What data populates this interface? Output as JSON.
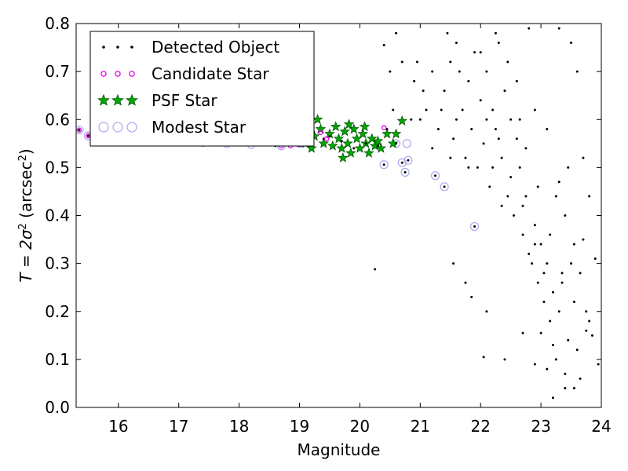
{
  "chart_data": {
    "type": "scatter",
    "xlabel": "Magnitude",
    "ylabel": {
      "prefix": "T = 2σ",
      "sup1": "2",
      "middle": " (arcsec",
      "sup2": "2",
      "suffix": ")"
    },
    "xlim": [
      15.3,
      24
    ],
    "ylim": [
      0.0,
      0.8
    ],
    "xticks": [
      16,
      17,
      18,
      19,
      20,
      21,
      22,
      23,
      24
    ],
    "yticks": [
      0.0,
      0.1,
      0.2,
      0.3,
      0.4,
      0.5,
      0.6,
      0.7,
      0.8
    ],
    "xtick_labels": [
      "16",
      "17",
      "18",
      "19",
      "20",
      "21",
      "22",
      "23",
      "24"
    ],
    "ytick_labels": [
      "0.0",
      "0.1",
      "0.2",
      "0.3",
      "0.4",
      "0.5",
      "0.6",
      "0.7",
      "0.8"
    ],
    "grid": false,
    "legend_position": "top-left",
    "series": [
      {
        "name": "Detected Object",
        "marker": "dot",
        "color": "#000000",
        "points": [
          [
            15.35,
            0.578
          ],
          [
            15.5,
            0.566
          ],
          [
            15.95,
            0.575
          ],
          [
            16.2,
            0.56
          ],
          [
            16.6,
            0.556
          ],
          [
            17.0,
            0.552
          ],
          [
            17.4,
            0.552
          ],
          [
            17.8,
            0.55
          ],
          [
            18.2,
            0.548
          ],
          [
            18.6,
            0.545
          ],
          [
            18.8,
            0.55
          ],
          [
            19.0,
            0.55
          ],
          [
            19.2,
            0.555
          ],
          [
            19.4,
            0.56
          ],
          [
            19.5,
            0.565
          ],
          [
            19.7,
            0.555
          ],
          [
            19.9,
            0.54
          ],
          [
            20.1,
            0.55
          ],
          [
            20.3,
            0.545
          ],
          [
            20.45,
            0.58
          ],
          [
            20.6,
            0.55
          ],
          [
            20.8,
            0.515
          ],
          [
            20.75,
            0.49
          ],
          [
            20.7,
            0.51
          ],
          [
            20.4,
            0.506
          ],
          [
            21.25,
            0.483
          ],
          [
            21.4,
            0.46
          ],
          [
            21.9,
            0.377
          ],
          [
            20.25,
            0.288
          ],
          [
            20.4,
            0.755
          ],
          [
            20.6,
            0.78
          ],
          [
            20.7,
            0.72
          ],
          [
            20.9,
            0.68
          ],
          [
            21.0,
            0.6
          ],
          [
            21.1,
            0.62
          ],
          [
            21.2,
            0.7
          ],
          [
            21.3,
            0.58
          ],
          [
            21.4,
            0.66
          ],
          [
            21.5,
            0.72
          ],
          [
            21.55,
            0.56
          ],
          [
            21.6,
            0.76
          ],
          [
            21.7,
            0.62
          ],
          [
            21.75,
            0.52
          ],
          [
            21.8,
            0.68
          ],
          [
            21.85,
            0.58
          ],
          [
            21.9,
            0.74
          ],
          [
            21.95,
            0.5
          ],
          [
            22.0,
            0.64
          ],
          [
            22.05,
            0.55
          ],
          [
            22.1,
            0.7
          ],
          [
            22.15,
            0.46
          ],
          [
            22.2,
            0.62
          ],
          [
            22.25,
            0.58
          ],
          [
            22.3,
            0.76
          ],
          [
            22.35,
            0.52
          ],
          [
            22.4,
            0.66
          ],
          [
            22.45,
            0.44
          ],
          [
            22.5,
            0.6
          ],
          [
            22.55,
            0.4
          ],
          [
            22.6,
            0.56
          ],
          [
            22.65,
            0.5
          ],
          [
            22.7,
            0.36
          ],
          [
            22.75,
            0.44
          ],
          [
            22.8,
            0.32
          ],
          [
            22.85,
            0.3
          ],
          [
            22.9,
            0.38
          ],
          [
            22.95,
            0.26
          ],
          [
            23.0,
            0.34
          ],
          [
            23.05,
            0.22
          ],
          [
            23.1,
            0.3
          ],
          [
            23.15,
            0.18
          ],
          [
            23.2,
            0.24
          ],
          [
            23.25,
            0.1
          ],
          [
            23.3,
            0.2
          ],
          [
            23.35,
            0.28
          ],
          [
            23.4,
            0.04
          ],
          [
            23.45,
            0.14
          ],
          [
            23.5,
            0.3
          ],
          [
            23.55,
            0.22
          ],
          [
            23.6,
            0.12
          ],
          [
            23.65,
            0.06
          ],
          [
            23.7,
            0.35
          ],
          [
            23.75,
            0.16
          ],
          [
            23.8,
            0.18
          ],
          [
            23.9,
            0.31
          ],
          [
            23.95,
            0.09
          ],
          [
            22.05,
            0.105
          ],
          [
            22.4,
            0.1
          ],
          [
            22.9,
            0.09
          ],
          [
            23.2,
            0.02
          ],
          [
            23.0,
            0.155
          ],
          [
            22.7,
            0.155
          ],
          [
            21.75,
            0.26
          ],
          [
            21.85,
            0.23
          ],
          [
            22.1,
            0.2
          ],
          [
            21.55,
            0.3
          ],
          [
            23.5,
            0.76
          ],
          [
            23.6,
            0.7
          ],
          [
            23.7,
            0.52
          ],
          [
            23.8,
            0.44
          ],
          [
            22.8,
            0.79
          ],
          [
            22.6,
            0.68
          ],
          [
            22.9,
            0.62
          ],
          [
            23.1,
            0.58
          ],
          [
            23.3,
            0.47
          ],
          [
            23.4,
            0.4
          ],
          [
            22.2,
            0.5
          ],
          [
            22.35,
            0.42
          ],
          [
            21.5,
            0.52
          ],
          [
            21.35,
            0.62
          ],
          [
            21.2,
            0.54
          ],
          [
            21.05,
            0.66
          ],
          [
            20.95,
            0.72
          ],
          [
            20.85,
            0.6
          ],
          [
            21.65,
            0.7
          ],
          [
            21.45,
            0.78
          ],
          [
            20.5,
            0.7
          ],
          [
            20.55,
            0.62
          ],
          [
            23.3,
            0.79
          ],
          [
            23.45,
            0.5
          ],
          [
            23.25,
            0.44
          ],
          [
            23.15,
            0.36
          ],
          [
            22.95,
            0.46
          ],
          [
            22.75,
            0.54
          ],
          [
            22.65,
            0.6
          ],
          [
            22.45,
            0.72
          ],
          [
            22.25,
            0.78
          ],
          [
            22.0,
            0.74
          ],
          [
            21.8,
            0.5
          ],
          [
            21.6,
            0.6
          ],
          [
            22.1,
            0.6
          ],
          [
            22.3,
            0.56
          ],
          [
            22.5,
            0.48
          ],
          [
            22.7,
            0.42
          ],
          [
            22.9,
            0.34
          ],
          [
            23.05,
            0.28
          ],
          [
            23.35,
            0.26
          ],
          [
            23.55,
            0.34
          ],
          [
            23.75,
            0.2
          ],
          [
            23.85,
            0.15
          ],
          [
            23.65,
            0.28
          ],
          [
            23.2,
            0.13
          ],
          [
            23.1,
            0.08
          ],
          [
            23.4,
            0.07
          ],
          [
            23.55,
            0.04
          ]
        ]
      },
      {
        "name": "Candidate Star",
        "marker": "small-circle",
        "color": "#e000e0",
        "points": [
          [
            15.35,
            0.578
          ],
          [
            15.5,
            0.566
          ],
          [
            19.35,
            0.573
          ],
          [
            19.45,
            0.56
          ],
          [
            20.4,
            0.583
          ],
          [
            18.7,
            0.545
          ],
          [
            18.85,
            0.545
          ],
          [
            19.0,
            0.548
          ]
        ]
      },
      {
        "name": "PSF Star",
        "marker": "star",
        "color": "#00aa00",
        "points": [
          [
            19.1,
            0.55
          ],
          [
            19.15,
            0.56
          ],
          [
            19.2,
            0.54
          ],
          [
            19.3,
            0.6
          ],
          [
            19.35,
            0.58
          ],
          [
            19.4,
            0.55
          ],
          [
            19.5,
            0.57
          ],
          [
            19.55,
            0.545
          ],
          [
            19.6,
            0.585
          ],
          [
            19.65,
            0.56
          ],
          [
            19.7,
            0.54
          ],
          [
            19.75,
            0.575
          ],
          [
            19.8,
            0.55
          ],
          [
            19.85,
            0.53
          ],
          [
            19.9,
            0.58
          ],
          [
            19.95,
            0.56
          ],
          [
            20.0,
            0.54
          ],
          [
            20.05,
            0.57
          ],
          [
            20.1,
            0.55
          ],
          [
            20.15,
            0.53
          ],
          [
            20.2,
            0.56
          ],
          [
            20.25,
            0.545
          ],
          [
            20.3,
            0.555
          ],
          [
            20.35,
            0.54
          ],
          [
            20.45,
            0.57
          ],
          [
            20.55,
            0.55
          ],
          [
            20.7,
            0.597
          ],
          [
            20.6,
            0.57
          ],
          [
            19.25,
            0.565
          ],
          [
            19.72,
            0.52
          ],
          [
            19.82,
            0.59
          ],
          [
            20.08,
            0.585
          ]
        ]
      },
      {
        "name": "Modest Star",
        "marker": "open-circle",
        "color": "#a8a8f0",
        "points": [
          [
            15.35,
            0.578
          ],
          [
            15.5,
            0.566
          ],
          [
            15.7,
            0.572
          ],
          [
            15.95,
            0.578
          ],
          [
            16.2,
            0.576
          ],
          [
            16.6,
            0.558
          ],
          [
            17.0,
            0.555
          ],
          [
            17.4,
            0.552
          ],
          [
            17.8,
            0.55
          ],
          [
            18.2,
            0.548
          ],
          [
            18.7,
            0.545
          ],
          [
            19.0,
            0.55
          ],
          [
            20.4,
            0.506
          ],
          [
            20.7,
            0.51
          ],
          [
            20.75,
            0.49
          ],
          [
            20.8,
            0.515
          ],
          [
            20.78,
            0.55
          ],
          [
            21.25,
            0.483
          ],
          [
            21.4,
            0.46
          ],
          [
            21.9,
            0.377
          ],
          [
            20.6,
            0.55
          ]
        ]
      }
    ]
  }
}
